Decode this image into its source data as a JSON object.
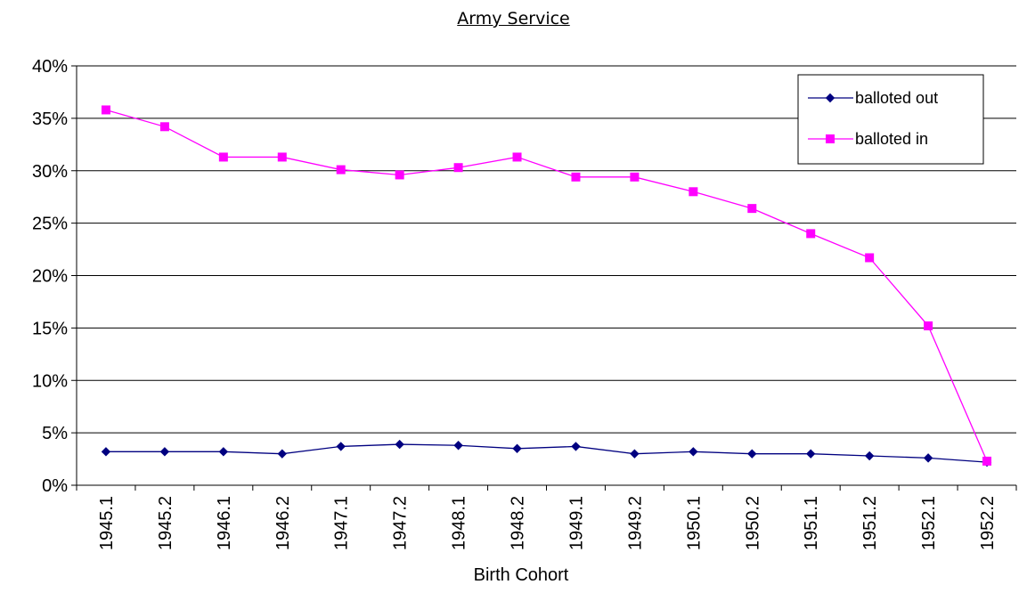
{
  "chart_data": {
    "type": "line",
    "title": "Army Service",
    "xlabel": "Birth Cohort",
    "ylabel": "",
    "categories": [
      "1945.1",
      "1945.2",
      "1946.1",
      "1946.2",
      "1947.1",
      "1947.2",
      "1948.1",
      "1948.2",
      "1949.1",
      "1949.2",
      "1950.1",
      "1950.2",
      "1951.1",
      "1951.2",
      "1952.1",
      "1952.2"
    ],
    "ylim": [
      0,
      40
    ],
    "yticks": [
      0,
      5,
      10,
      15,
      20,
      25,
      30,
      35,
      40
    ],
    "ytick_labels": [
      "0%",
      "5%",
      "10%",
      "15%",
      "20%",
      "25%",
      "30%",
      "35%",
      "40%"
    ],
    "grid": true,
    "legend_position": "top-right",
    "series": [
      {
        "name": "balloted out",
        "color": "#000080",
        "marker": "diamond",
        "values": [
          3.2,
          3.2,
          3.2,
          3.0,
          3.7,
          3.9,
          3.8,
          3.5,
          3.7,
          3.0,
          3.2,
          3.0,
          3.0,
          2.8,
          2.6,
          2.2
        ]
      },
      {
        "name": "balloted in",
        "color": "#ff00ff",
        "marker": "square",
        "values": [
          35.8,
          34.2,
          31.3,
          31.3,
          30.1,
          29.6,
          30.3,
          31.3,
          29.4,
          29.4,
          28.0,
          26.4,
          24.0,
          21.7,
          15.2,
          2.3
        ]
      }
    ]
  }
}
